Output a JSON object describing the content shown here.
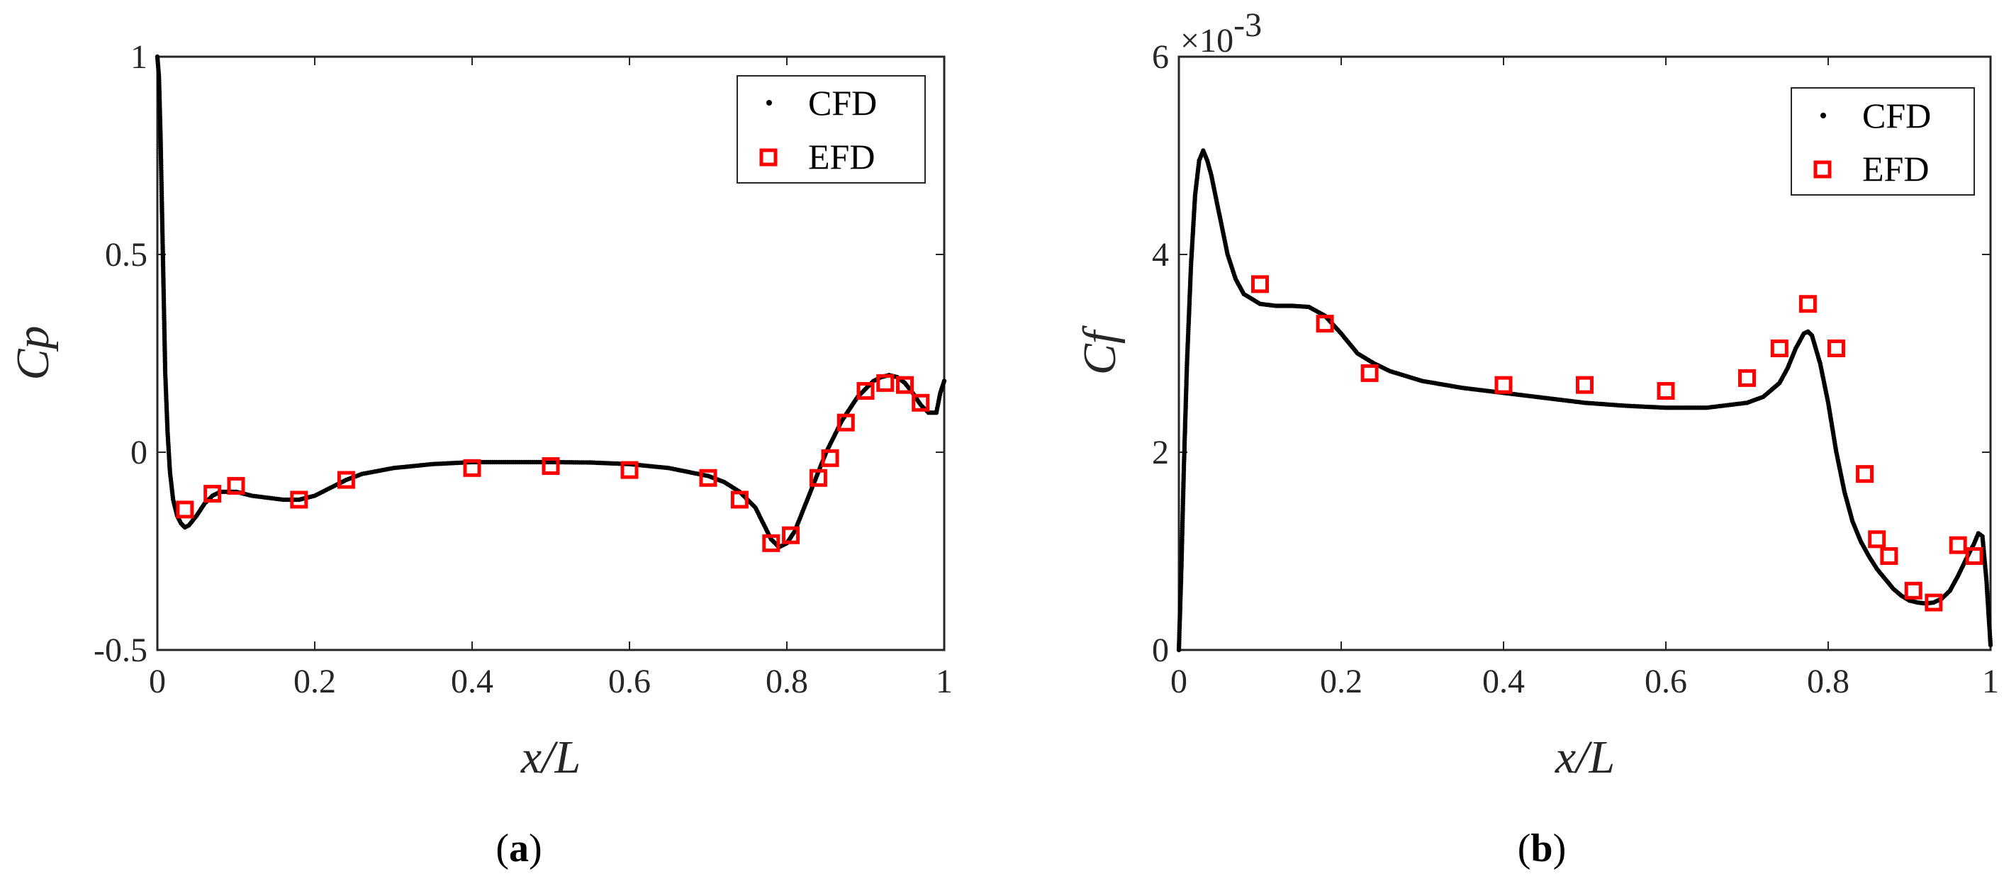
{
  "chart_data": [
    {
      "type": "scatter",
      "id": "a",
      "caption_letter": "a",
      "caption_open": "(",
      "caption_close": ")",
      "xlabel": "x/L",
      "ylabel": "Cp",
      "xlim": [
        0,
        1
      ],
      "ylim": [
        -0.5,
        1
      ],
      "xticks": [
        0,
        0.2,
        0.4,
        0.6,
        0.8,
        1
      ],
      "xtick_labels": [
        "0",
        "0.2",
        "0.4",
        "0.6",
        "0.8",
        "1"
      ],
      "yticks": [
        -0.5,
        0,
        0.5,
        1
      ],
      "ytick_labels": [
        "-0.5",
        "0",
        "0.5",
        "1"
      ],
      "legend": {
        "position": "top-right",
        "entries": [
          "CFD",
          "EFD"
        ]
      },
      "series": [
        {
          "name": "CFD",
          "style": "dots",
          "color": "#000000",
          "x": [
            0.0,
            0.002,
            0.004,
            0.006,
            0.008,
            0.01,
            0.013,
            0.016,
            0.02,
            0.025,
            0.03,
            0.035,
            0.04,
            0.05,
            0.06,
            0.07,
            0.08,
            0.1,
            0.12,
            0.14,
            0.16,
            0.18,
            0.2,
            0.22,
            0.24,
            0.26,
            0.3,
            0.35,
            0.4,
            0.45,
            0.5,
            0.55,
            0.6,
            0.65,
            0.7,
            0.72,
            0.74,
            0.76,
            0.77,
            0.78,
            0.79,
            0.8,
            0.81,
            0.82,
            0.83,
            0.84,
            0.85,
            0.86,
            0.87,
            0.88,
            0.89,
            0.9,
            0.91,
            0.92,
            0.93,
            0.94,
            0.95,
            0.96,
            0.97,
            0.98,
            0.99,
            0.995,
            1.0
          ],
          "y": [
            1.0,
            0.95,
            0.8,
            0.6,
            0.4,
            0.2,
            0.05,
            -0.05,
            -0.12,
            -0.16,
            -0.18,
            -0.19,
            -0.185,
            -0.16,
            -0.13,
            -0.11,
            -0.1,
            -0.1,
            -0.11,
            -0.115,
            -0.12,
            -0.12,
            -0.11,
            -0.09,
            -0.07,
            -0.055,
            -0.04,
            -0.03,
            -0.025,
            -0.025,
            -0.025,
            -0.026,
            -0.03,
            -0.04,
            -0.06,
            -0.075,
            -0.1,
            -0.14,
            -0.18,
            -0.22,
            -0.24,
            -0.23,
            -0.2,
            -0.15,
            -0.1,
            -0.05,
            0.0,
            0.04,
            0.08,
            0.11,
            0.14,
            0.16,
            0.18,
            0.19,
            0.195,
            0.19,
            0.175,
            0.15,
            0.12,
            0.1,
            0.1,
            0.15,
            0.18
          ]
        },
        {
          "name": "EFD",
          "style": "squares",
          "color": "#ff0000",
          "x": [
            0.035,
            0.07,
            0.1,
            0.18,
            0.24,
            0.4,
            0.5,
            0.6,
            0.7,
            0.74,
            0.78,
            0.805,
            0.84,
            0.855,
            0.875,
            0.9,
            0.925,
            0.95,
            0.97
          ],
          "y": [
            -0.145,
            -0.105,
            -0.085,
            -0.12,
            -0.07,
            -0.04,
            -0.035,
            -0.045,
            -0.065,
            -0.12,
            -0.23,
            -0.21,
            -0.065,
            -0.015,
            0.075,
            0.155,
            0.175,
            0.17,
            0.125
          ]
        }
      ]
    },
    {
      "type": "scatter",
      "id": "b",
      "caption_letter": "b",
      "caption_open": "(",
      "caption_close": ")",
      "xlabel": "x/L",
      "ylabel": "Cf",
      "scale_base": "×10",
      "scale_exponent": "-3",
      "xlim": [
        0,
        1
      ],
      "ylim": [
        0,
        6
      ],
      "xticks": [
        0,
        0.2,
        0.4,
        0.6,
        0.8,
        1
      ],
      "xtick_labels": [
        "0",
        "0.2",
        "0.4",
        "0.6",
        "0.8",
        "1"
      ],
      "yticks": [
        0,
        2,
        4,
        6
      ],
      "ytick_labels": [
        "0",
        "2",
        "4",
        "6"
      ],
      "legend": {
        "position": "top-right",
        "entries": [
          "CFD",
          "EFD"
        ]
      },
      "series": [
        {
          "name": "CFD",
          "style": "dots",
          "color": "#000000",
          "x": [
            0.0,
            0.003,
            0.006,
            0.01,
            0.015,
            0.02,
            0.025,
            0.03,
            0.035,
            0.04,
            0.05,
            0.06,
            0.07,
            0.08,
            0.1,
            0.12,
            0.14,
            0.16,
            0.18,
            0.2,
            0.22,
            0.24,
            0.26,
            0.3,
            0.35,
            0.4,
            0.45,
            0.5,
            0.55,
            0.6,
            0.65,
            0.7,
            0.72,
            0.74,
            0.75,
            0.76,
            0.77,
            0.775,
            0.78,
            0.79,
            0.8,
            0.81,
            0.82,
            0.83,
            0.84,
            0.85,
            0.86,
            0.87,
            0.88,
            0.89,
            0.9,
            0.91,
            0.92,
            0.93,
            0.94,
            0.95,
            0.96,
            0.97,
            0.98,
            0.985,
            0.99,
            0.995,
            1.0
          ],
          "y": [
            0.0,
            0.8,
            1.8,
            2.9,
            3.9,
            4.6,
            4.95,
            5.05,
            4.95,
            4.8,
            4.4,
            4.0,
            3.75,
            3.6,
            3.5,
            3.48,
            3.48,
            3.47,
            3.38,
            3.2,
            3.0,
            2.9,
            2.82,
            2.72,
            2.65,
            2.6,
            2.55,
            2.5,
            2.47,
            2.45,
            2.45,
            2.5,
            2.56,
            2.7,
            2.85,
            3.05,
            3.2,
            3.22,
            3.18,
            2.9,
            2.5,
            2.0,
            1.6,
            1.3,
            1.1,
            0.95,
            0.82,
            0.72,
            0.62,
            0.55,
            0.5,
            0.48,
            0.47,
            0.48,
            0.52,
            0.6,
            0.75,
            0.92,
            1.08,
            1.18,
            1.15,
            0.7,
            0.05
          ]
        },
        {
          "name": "EFD",
          "style": "squares",
          "color": "#ff0000",
          "x": [
            0.1,
            0.18,
            0.235,
            0.4,
            0.5,
            0.6,
            0.7,
            0.74,
            0.775,
            0.81,
            0.845,
            0.86,
            0.875,
            0.905,
            0.93,
            0.96,
            0.98
          ],
          "y": [
            3.7,
            3.3,
            2.8,
            2.68,
            2.68,
            2.62,
            2.75,
            3.05,
            3.5,
            3.05,
            1.78,
            1.12,
            0.95,
            0.6,
            0.48,
            1.06,
            0.95
          ]
        }
      ]
    }
  ]
}
